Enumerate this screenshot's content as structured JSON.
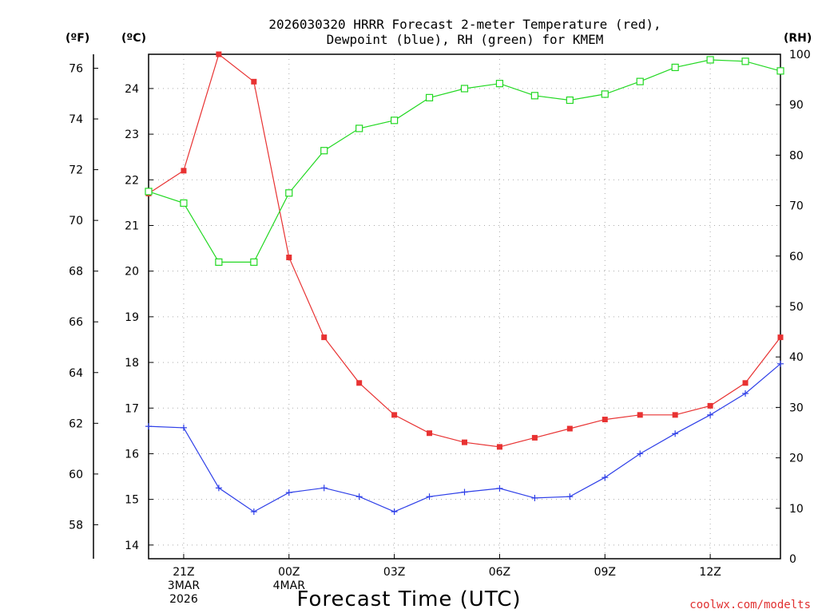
{
  "chart_data": {
    "type": "line",
    "title_line1": "2026030320 HRRR Forecast 2-meter Temperature (red),",
    "title_line2": "Dewpoint (blue), RH (green) for KMEM",
    "xlabel": "Forecast Time (UTC)",
    "credit": "coolwx.com/modelts",
    "units": {
      "left_f": "(ºF)",
      "left_c": "(ºC)",
      "right_rh": "(RH)"
    },
    "x_hours": [
      0,
      1,
      2,
      3,
      4,
      5,
      6,
      7,
      8,
      9,
      10,
      11,
      12,
      13,
      14,
      15,
      16,
      17,
      18
    ],
    "x_ticks": [
      {
        "hour": 1,
        "lines": [
          "21Z",
          "3MAR",
          "2026"
        ]
      },
      {
        "hour": 4,
        "lines": [
          "00Z",
          "4MAR"
        ]
      },
      {
        "hour": 7,
        "lines": [
          "03Z"
        ]
      },
      {
        "hour": 10,
        "lines": [
          "06Z"
        ]
      },
      {
        "hour": 13,
        "lines": [
          "09Z"
        ]
      },
      {
        "hour": 16,
        "lines": [
          "12Z"
        ]
      }
    ],
    "celsius_ticks": [
      "14",
      "15",
      "16",
      "17",
      "18",
      "19",
      "20",
      "21",
      "22",
      "23",
      "24"
    ],
    "fahrenheit_ticks": [
      "58",
      "60",
      "62",
      "64",
      "66",
      "68",
      "70",
      "72",
      "74",
      "76"
    ],
    "rh_ticks": [
      "0",
      "10",
      "20",
      "30",
      "40",
      "50",
      "60",
      "70",
      "80",
      "90",
      "100"
    ],
    "c_range": [
      13.7,
      24.75
    ],
    "rh_range": [
      0,
      100
    ],
    "series": [
      {
        "name": "Temperature",
        "unit": "C",
        "color": "#e83232",
        "marker": "filled-square",
        "values": [
          21.7,
          22.2,
          24.75,
          24.15,
          20.3,
          18.55,
          17.55,
          16.85,
          16.45,
          16.25,
          16.15,
          16.35,
          16.55,
          16.75,
          16.85,
          16.85,
          17.05,
          17.55,
          18.55
        ]
      },
      {
        "name": "Dewpoint",
        "unit": "C",
        "color": "#2e3fe8",
        "marker": "plus",
        "values": [
          16.6,
          16.57,
          15.25,
          14.73,
          15.15,
          15.25,
          15.06,
          14.73,
          15.06,
          15.16,
          15.24,
          15.03,
          15.06,
          15.48,
          16.0,
          16.44,
          16.85,
          17.32,
          17.97
        ]
      },
      {
        "name": "RH",
        "unit": "%",
        "color": "#22d822",
        "marker": "open-square",
        "values": [
          72.8,
          70.5,
          58.8,
          58.8,
          72.5,
          80.9,
          85.3,
          86.9,
          91.4,
          93.2,
          94.2,
          91.8,
          90.9,
          92.1,
          94.6,
          97.4,
          98.9,
          98.6,
          96.7
        ]
      }
    ]
  }
}
